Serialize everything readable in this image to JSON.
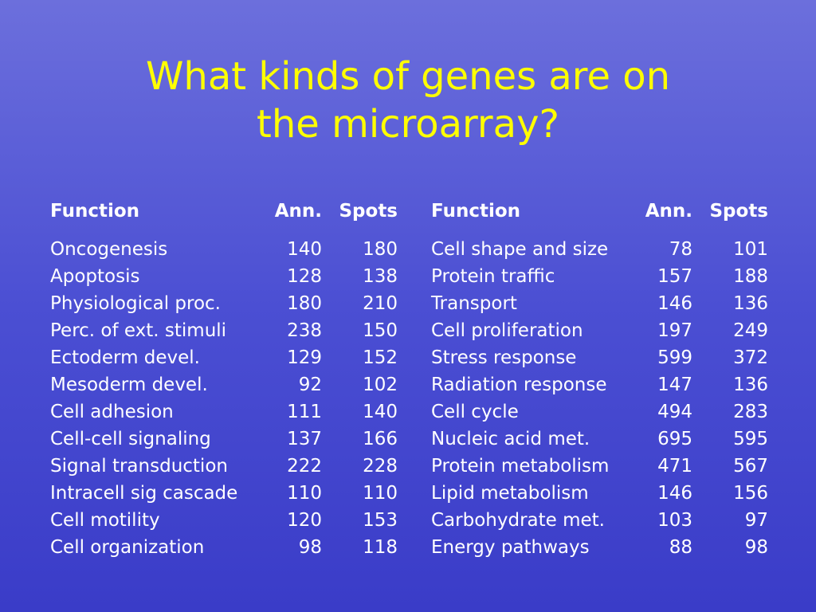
{
  "title_line1": "What kinds of genes are on",
  "title_line2": "the microarray?",
  "colors": {
    "title": "#ffff00",
    "text": "#ffffff",
    "background_top": "#6c6fdc",
    "background_bottom": "#3a3cc8"
  },
  "headers": {
    "function": "Function",
    "ann": "Ann.",
    "spots": "Spots"
  },
  "left_table": [
    {
      "function": "Oncogenesis",
      "ann": "140",
      "spots": "180"
    },
    {
      "function": "Apoptosis",
      "ann": "128",
      "spots": "138"
    },
    {
      "function": "Physiological proc.",
      "ann": "180",
      "spots": "210"
    },
    {
      "function": "Perc. of ext. stimuli",
      "ann": "238",
      "spots": "150"
    },
    {
      "function": "Ectoderm devel.",
      "ann": "129",
      "spots": "152"
    },
    {
      "function": "Mesoderm devel.",
      "ann": "92",
      "spots": "102"
    },
    {
      "function": "Cell adhesion",
      "ann": "111",
      "spots": "140"
    },
    {
      "function": "Cell-cell signaling",
      "ann": "137",
      "spots": "166"
    },
    {
      "function": "Signal transduction",
      "ann": "222",
      "spots": "228"
    },
    {
      "function": "Intracell sig cascade",
      "ann": "110",
      "spots": "110"
    },
    {
      "function": "Cell motility",
      "ann": "120",
      "spots": "153"
    },
    {
      "function": "Cell organization",
      "ann": "98",
      "spots": "118"
    }
  ],
  "right_table": [
    {
      "function": "Cell shape and size",
      "ann": "78",
      "spots": "101"
    },
    {
      "function": "Protein traffic",
      "ann": "157",
      "spots": "188"
    },
    {
      "function": "Transport",
      "ann": "146",
      "spots": "136"
    },
    {
      "function": "Cell proliferation",
      "ann": "197",
      "spots": "249"
    },
    {
      "function": "Stress response",
      "ann": "599",
      "spots": "372"
    },
    {
      "function": "Radiation response",
      "ann": "147",
      "spots": "136"
    },
    {
      "function": "Cell cycle",
      "ann": "494",
      "spots": "283"
    },
    {
      "function": "Nucleic acid met.",
      "ann": "695",
      "spots": "595"
    },
    {
      "function": "Protein metabolism",
      "ann": "471",
      "spots": "567"
    },
    {
      "function": "Lipid metabolism",
      "ann": "146",
      "spots": "156"
    },
    {
      "function": "Carbohydrate met.",
      "ann": "103",
      "spots": "97"
    },
    {
      "function": "Energy pathways",
      "ann": "88",
      "spots": "98"
    }
  ]
}
